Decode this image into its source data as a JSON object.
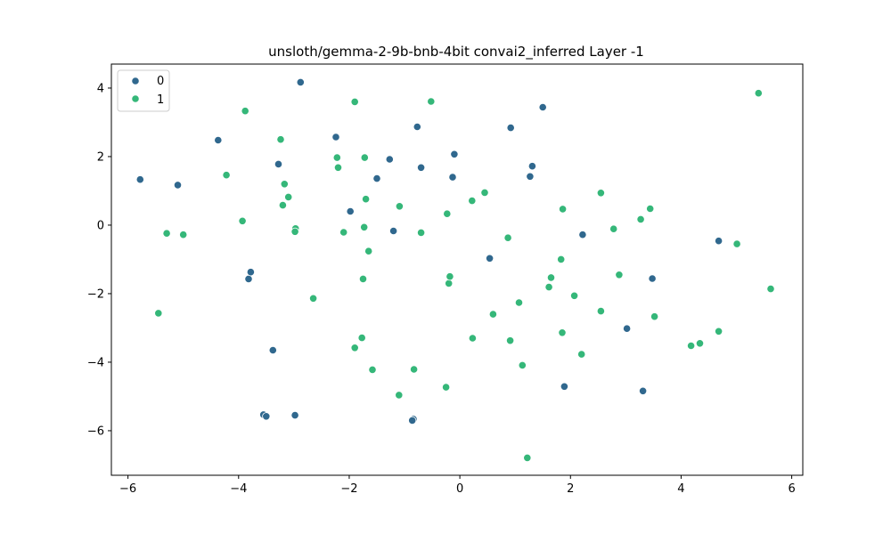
{
  "chart_data": {
    "type": "scatter",
    "title": "unsloth/gemma-2-9b-bnb-4bit convai2_inferred Layer -1",
    "xlabel": "",
    "ylabel": "",
    "xlim": [
      -6.3,
      6.2
    ],
    "ylim": [
      -7.3,
      4.7
    ],
    "xticks": [
      -6,
      -4,
      -2,
      0,
      2,
      4,
      6
    ],
    "yticks": [
      -6,
      -4,
      -2,
      0,
      2,
      4
    ],
    "xtick_labels": [
      "−6",
      "−4",
      "−2",
      "0",
      "2",
      "4",
      "6"
    ],
    "ytick_labels": [
      "−6",
      "−4",
      "−2",
      "0",
      "2",
      "4"
    ],
    "grid": false,
    "legend_position": "top-left",
    "series": [
      {
        "name": "0",
        "color": "#30688e",
        "points": [
          [
            -5.78,
            1.33
          ],
          [
            -5.1,
            1.17
          ],
          [
            -4.37,
            2.48
          ],
          [
            -3.82,
            -1.57
          ],
          [
            -3.78,
            -1.37
          ],
          [
            -3.38,
            -3.65
          ],
          [
            -3.55,
            -5.53
          ],
          [
            -3.5,
            -5.58
          ],
          [
            -2.98,
            -5.55
          ],
          [
            -2.88,
            4.17
          ],
          [
            -3.28,
            1.78
          ],
          [
            -2.24,
            2.57
          ],
          [
            -1.98,
            0.4
          ],
          [
            -1.5,
            1.36
          ],
          [
            -1.27,
            1.92
          ],
          [
            -1.2,
            -0.17
          ],
          [
            -0.77,
            2.87
          ],
          [
            -0.7,
            1.68
          ],
          [
            -0.13,
            1.4
          ],
          [
            -0.1,
            2.07
          ],
          [
            -0.84,
            -5.66
          ],
          [
            -0.86,
            -5.7
          ],
          [
            0.54,
            -0.97
          ],
          [
            0.92,
            2.84
          ],
          [
            1.27,
            1.42
          ],
          [
            1.31,
            1.72
          ],
          [
            1.5,
            3.44
          ],
          [
            1.89,
            -4.71
          ],
          [
            2.22,
            -0.28
          ],
          [
            3.02,
            -3.02
          ],
          [
            3.31,
            -4.84
          ],
          [
            3.48,
            -1.56
          ],
          [
            4.68,
            -0.46
          ]
        ]
      },
      {
        "name": "1",
        "color": "#35b779",
        "points": [
          [
            -5.3,
            -0.24
          ],
          [
            -5.0,
            -0.28
          ],
          [
            -5.45,
            -2.57
          ],
          [
            -4.22,
            1.46
          ],
          [
            -3.93,
            0.12
          ],
          [
            -3.88,
            3.33
          ],
          [
            -3.24,
            2.5
          ],
          [
            -3.2,
            0.58
          ],
          [
            -3.17,
            1.2
          ],
          [
            -3.1,
            0.82
          ],
          [
            -2.97,
            -0.1
          ],
          [
            -2.98,
            -0.19
          ],
          [
            -2.65,
            -2.14
          ],
          [
            -2.22,
            1.97
          ],
          [
            -2.2,
            1.68
          ],
          [
            -2.1,
            -0.21
          ],
          [
            -1.9,
            3.6
          ],
          [
            -1.72,
            1.97
          ],
          [
            -1.7,
            0.76
          ],
          [
            -1.73,
            -0.06
          ],
          [
            -1.75,
            -1.57
          ],
          [
            -1.77,
            -3.29
          ],
          [
            -1.9,
            -3.58
          ],
          [
            -1.65,
            -0.76
          ],
          [
            -1.58,
            -4.22
          ],
          [
            -1.09,
            0.55
          ],
          [
            -1.1,
            -4.96
          ],
          [
            -0.83,
            -4.21
          ],
          [
            -0.7,
            -0.22
          ],
          [
            -0.52,
            3.61
          ],
          [
            -0.23,
            0.33
          ],
          [
            -0.2,
            -1.7
          ],
          [
            -0.18,
            -1.5
          ],
          [
            -0.25,
            -4.73
          ],
          [
            0.22,
            0.71
          ],
          [
            0.23,
            -3.3
          ],
          [
            0.45,
            0.95
          ],
          [
            0.6,
            -2.6
          ],
          [
            0.87,
            -0.37
          ],
          [
            0.91,
            -3.37
          ],
          [
            1.07,
            -2.26
          ],
          [
            1.13,
            -4.09
          ],
          [
            1.22,
            -6.79
          ],
          [
            1.61,
            -1.81
          ],
          [
            1.65,
            -1.53
          ],
          [
            1.83,
            -1.0
          ],
          [
            1.86,
            0.47
          ],
          [
            1.85,
            -3.14
          ],
          [
            2.07,
            -2.06
          ],
          [
            2.2,
            -3.77
          ],
          [
            2.55,
            0.94
          ],
          [
            2.55,
            -2.51
          ],
          [
            2.78,
            -0.11
          ],
          [
            2.88,
            -1.45
          ],
          [
            3.27,
            0.17
          ],
          [
            3.44,
            0.48
          ],
          [
            3.52,
            -2.67
          ],
          [
            4.18,
            -3.52
          ],
          [
            4.34,
            -3.45
          ],
          [
            4.68,
            -3.1
          ],
          [
            5.01,
            -0.55
          ],
          [
            5.4,
            3.85
          ],
          [
            5.62,
            -1.86
          ]
        ]
      }
    ]
  }
}
